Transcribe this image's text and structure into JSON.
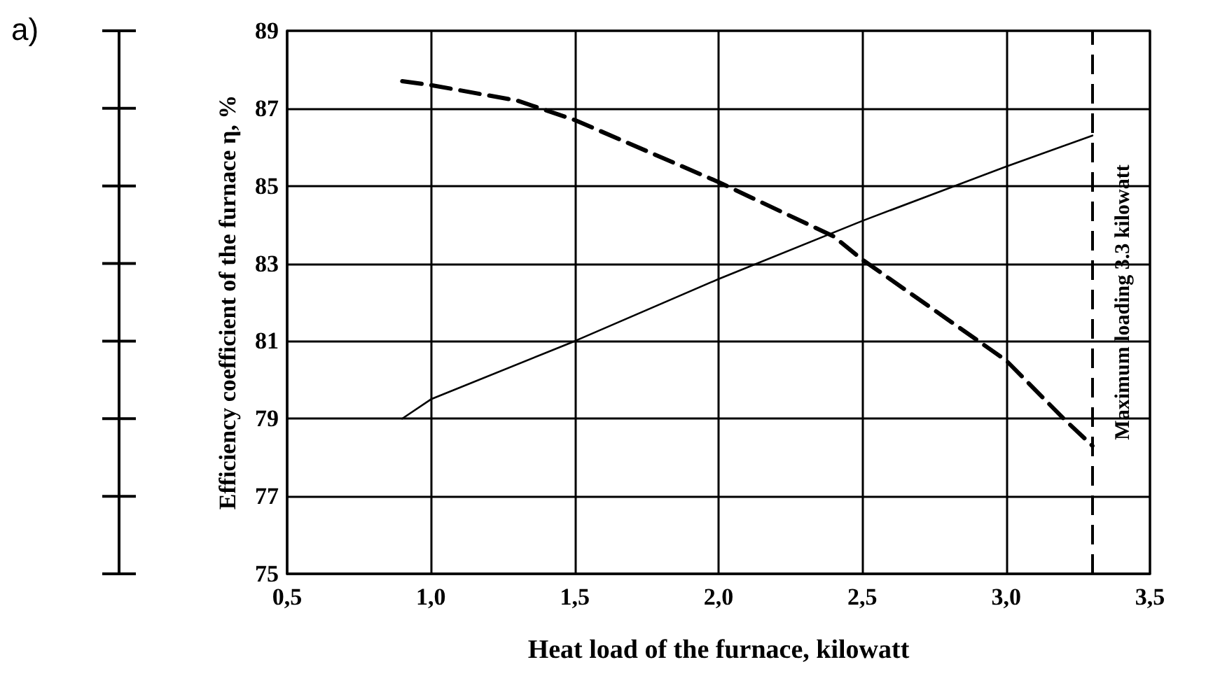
{
  "chart_data": {
    "type": "line",
    "xlabel": "Heat load of the furnace, kilowatt",
    "ylabel": "Efficiency coefficient of the furnace η, %",
    "annotations": [
      "a)"
    ],
    "xlim": [
      0.5,
      3.5
    ],
    "xticks": [
      {
        "value": 0.5,
        "label": "0,5"
      },
      {
        "value": 1.0,
        "label": "1,0"
      },
      {
        "value": 1.5,
        "label": "1,5"
      },
      {
        "value": 2.0,
        "label": "2,0"
      },
      {
        "value": 2.5,
        "label": "2,5"
      },
      {
        "value": 3.0,
        "label": "3,0"
      },
      {
        "value": 3.5,
        "label": "3,5"
      }
    ],
    "ylim": [
      75,
      89
    ],
    "yticks": [
      75,
      77,
      79,
      81,
      83,
      85,
      87,
      89
    ],
    "series": [
      {
        "color": "#000000",
        "line_style": "solid",
        "x": [
          0.9,
          1.0,
          1.5,
          2.0,
          2.5,
          3.0,
          3.3
        ],
        "values": [
          79.0,
          79.5,
          81.0,
          82.6,
          84.1,
          85.5,
          86.3
        ]
      },
      {
        "color": "#000000",
        "line_style": "dashed",
        "x": [
          0.9,
          1.0,
          1.3,
          1.5,
          2.0,
          2.4,
          2.5,
          3.0,
          3.2,
          3.3
        ],
        "values": [
          87.7,
          87.6,
          87.2,
          86.7,
          85.1,
          83.7,
          83.1,
          80.5,
          79.0,
          78.3
        ]
      }
    ],
    "ref_lines": [
      {
        "axis": "x",
        "value": 3.3,
        "label": "Maximum loading 3.3 kilowatt",
        "line_style": "dashed",
        "color": "#000000"
      }
    ],
    "grid": true,
    "marker": "none"
  }
}
